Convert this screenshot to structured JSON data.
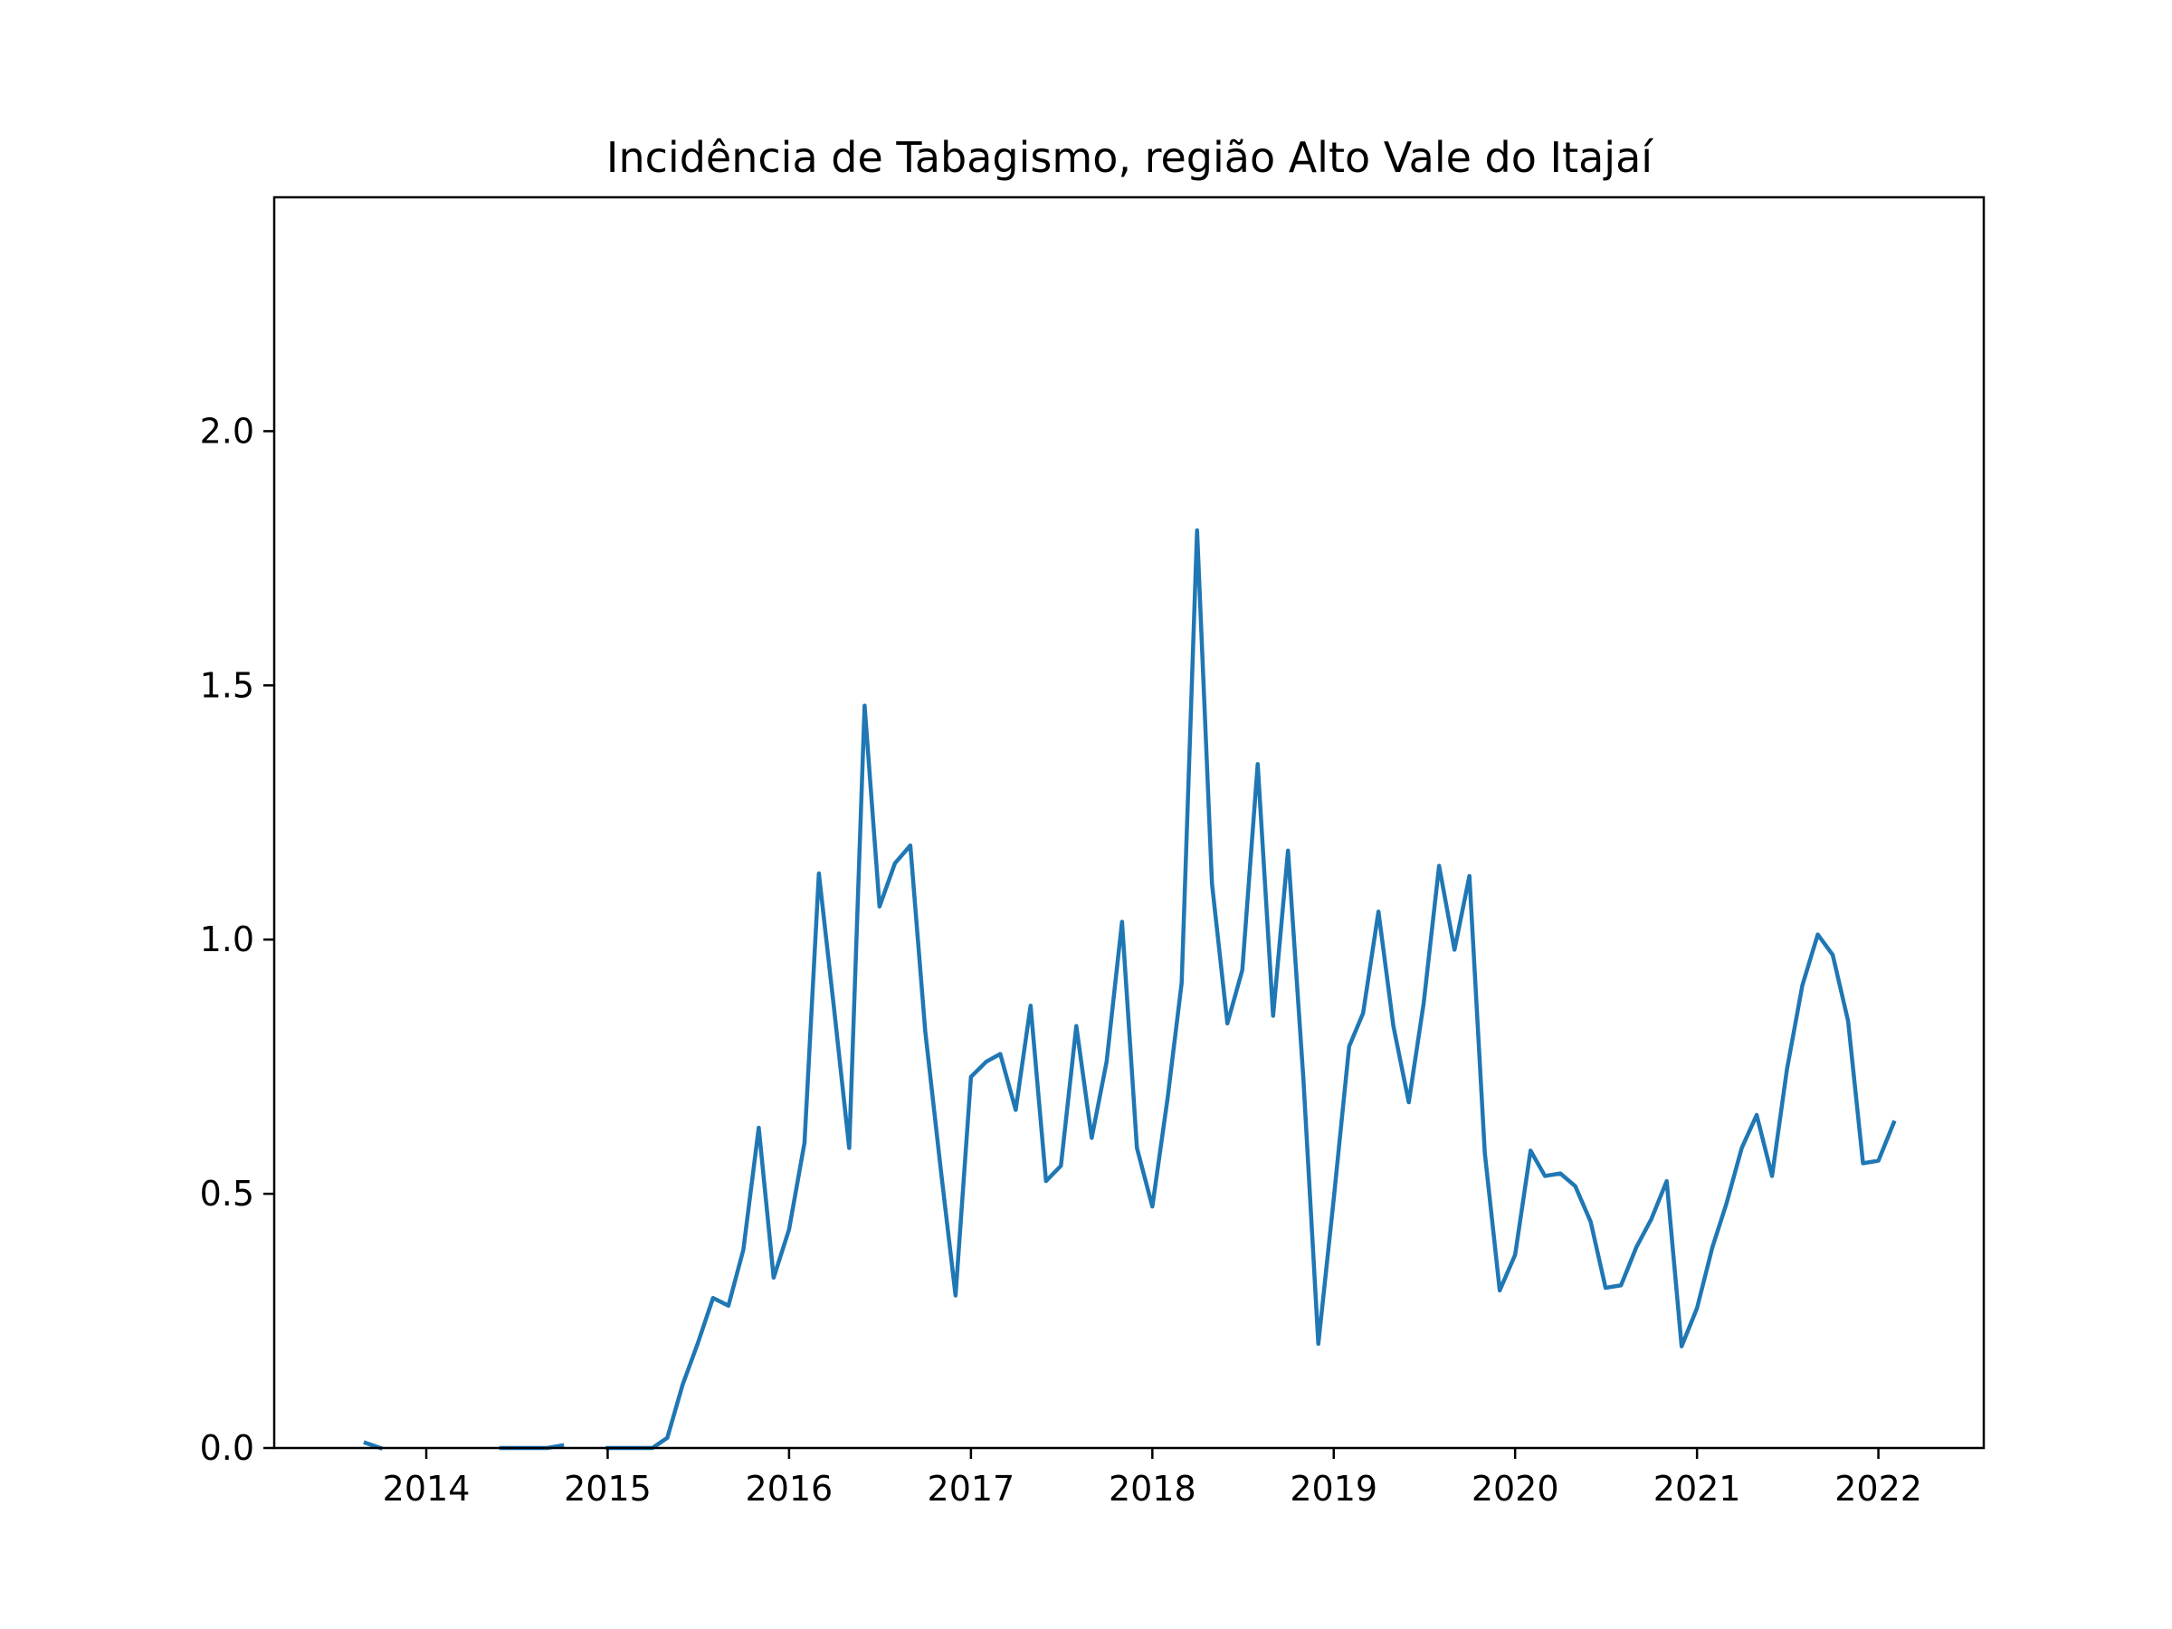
{
  "chart_data": {
    "type": "line",
    "title": "Incidência de Tabagismo, região Alto Vale do Itajaí",
    "xlabel": "",
    "ylabel": "",
    "x_axis_type": "date",
    "xlim": [
      "2013-03-01",
      "2022-08-01"
    ],
    "ylim": [
      0,
      2.46
    ],
    "grid": false,
    "legend": "none",
    "x_ticks": [
      "2014-01-01",
      "2015-01-01",
      "2016-01-01",
      "2017-01-01",
      "2018-01-01",
      "2019-01-01",
      "2020-01-01",
      "2021-01-01",
      "2022-01-01"
    ],
    "x_tick_labels": [
      "2014",
      "2015",
      "2016",
      "2017",
      "2018",
      "2019",
      "2020",
      "2021",
      "2022"
    ],
    "y_ticks": [
      0.0,
      0.5,
      1.0,
      1.5,
      2.0
    ],
    "y_tick_labels": [
      "0.0",
      "0.5",
      "1.0",
      "1.5",
      "2.0"
    ],
    "colors": {
      "series": "#1f77b4"
    },
    "series": [
      {
        "segments": [
          [
            [
              "2013-09-01",
              0.01
            ],
            [
              "2013-10-01",
              0.0
            ]
          ],
          [
            [
              "2014-06-01",
              0.0
            ],
            [
              "2014-07-01",
              0.0
            ],
            [
              "2014-08-01",
              0.0
            ],
            [
              "2014-09-01",
              0.0
            ],
            [
              "2014-10-01",
              0.005
            ]
          ],
          [
            [
              "2015-01-01",
              0.0
            ],
            [
              "2015-02-01",
              0.0
            ],
            [
              "2015-03-01",
              0.0
            ],
            [
              "2015-04-01",
              0.0
            ],
            [
              "2015-05-01",
              0.02
            ],
            [
              "2015-06-01",
              0.125
            ],
            [
              "2015-07-01",
              0.205
            ],
            [
              "2015-08-01",
              0.295
            ],
            [
              "2015-09-01",
              0.28
            ],
            [
              "2015-10-01",
              0.39
            ],
            [
              "2015-11-01",
              0.63
            ],
            [
              "2015-12-01",
              0.335
            ],
            [
              "2016-01-01",
              0.43
            ],
            [
              "2016-02-01",
              0.6
            ],
            [
              "2016-03-01",
              1.13
            ],
            [
              "2016-04-01",
              0.86
            ],
            [
              "2016-05-01",
              0.59
            ],
            [
              "2016-06-01",
              1.46
            ],
            [
              "2016-07-01",
              1.065
            ],
            [
              "2016-08-01",
              1.15
            ],
            [
              "2016-09-01",
              1.185
            ],
            [
              "2016-10-01",
              0.82
            ],
            [
              "2016-11-01",
              0.55
            ],
            [
              "2016-12-01",
              0.3
            ],
            [
              "2017-01-01",
              0.73
            ],
            [
              "2017-02-01",
              0.76
            ],
            [
              "2017-03-01",
              0.775
            ],
            [
              "2017-04-01",
              0.665
            ],
            [
              "2017-05-01",
              0.87
            ],
            [
              "2017-06-01",
              0.525
            ],
            [
              "2017-07-01",
              0.555
            ],
            [
              "2017-08-01",
              0.83
            ],
            [
              "2017-09-01",
              0.61
            ],
            [
              "2017-10-01",
              0.76
            ],
            [
              "2017-11-01",
              1.035
            ],
            [
              "2017-12-01",
              0.59
            ],
            [
              "2018-01-01",
              0.475
            ],
            [
              "2018-02-01",
              0.69
            ],
            [
              "2018-03-01",
              0.915
            ],
            [
              "2018-04-01",
              1.805
            ],
            [
              "2018-05-01",
              1.11
            ],
            [
              "2018-06-01",
              0.835
            ],
            [
              "2018-07-01",
              0.94
            ],
            [
              "2018-08-01",
              1.345
            ],
            [
              "2018-09-01",
              0.85
            ],
            [
              "2018-10-01",
              1.175
            ],
            [
              "2018-11-01",
              0.725
            ],
            [
              "2018-12-01",
              0.205
            ],
            [
              "2019-01-01",
              0.49
            ],
            [
              "2019-02-01",
              0.79
            ],
            [
              "2019-03-01",
              0.855
            ],
            [
              "2019-04-01",
              1.055
            ],
            [
              "2019-05-01",
              0.83
            ],
            [
              "2019-06-01",
              0.68
            ],
            [
              "2019-07-01",
              0.875
            ],
            [
              "2019-08-01",
              1.145
            ],
            [
              "2019-09-01",
              0.98
            ],
            [
              "2019-10-01",
              1.125
            ],
            [
              "2019-11-01",
              0.58
            ],
            [
              "2019-12-01",
              0.31
            ],
            [
              "2020-01-01",
              0.38
            ],
            [
              "2020-02-01",
              0.585
            ],
            [
              "2020-03-01",
              0.535
            ],
            [
              "2020-04-01",
              0.54
            ],
            [
              "2020-05-01",
              0.515
            ],
            [
              "2020-06-01",
              0.445
            ],
            [
              "2020-07-01",
              0.315
            ],
            [
              "2020-08-01",
              0.32
            ],
            [
              "2020-09-01",
              0.395
            ],
            [
              "2020-10-01",
              0.45
            ],
            [
              "2020-11-01",
              0.525
            ],
            [
              "2020-12-01",
              0.2
            ],
            [
              "2021-01-01",
              0.275
            ],
            [
              "2021-02-01",
              0.395
            ],
            [
              "2021-03-01",
              0.48
            ],
            [
              "2021-04-01",
              0.59
            ],
            [
              "2021-05-01",
              0.655
            ],
            [
              "2021-06-01",
              0.535
            ],
            [
              "2021-07-01",
              0.745
            ],
            [
              "2021-08-01",
              0.91
            ],
            [
              "2021-09-01",
              1.01
            ],
            [
              "2021-10-01",
              0.97
            ],
            [
              "2021-11-01",
              0.84
            ],
            [
              "2021-12-01",
              0.56
            ],
            [
              "2022-01-01",
              0.565
            ],
            [
              "2022-02-01",
              0.64
            ]
          ]
        ]
      }
    ]
  }
}
